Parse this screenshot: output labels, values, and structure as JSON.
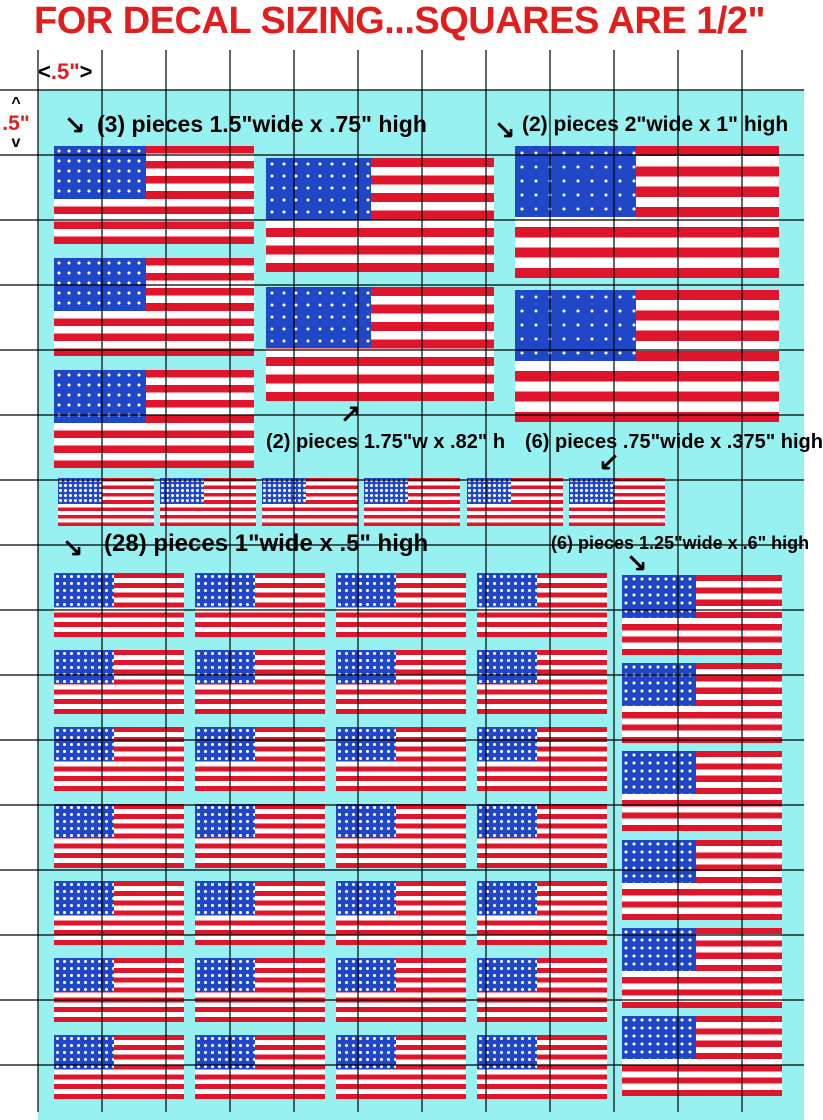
{
  "title": "FOR DECAL SIZING...SQUARES ARE 1/2\"",
  "scale": {
    "value": ".5\"",
    "left": "<",
    "right": ">",
    "up": "^",
    "down": "v"
  },
  "labels": {
    "three_large": "(3) pieces 1.5\"wide x .75\" high",
    "two_2in": "(2) pieces 2\"wide x 1\" high",
    "two_175": "(2) pieces 1.75\"w x .82\" h",
    "six_75": "(6) pieces .75\"wide x .375\" high",
    "twentyeight": "(28) pieces 1\"wide x .5\" high",
    "six_125": "(6) pieces 1.25\"wide x .6\" high"
  },
  "colors": {
    "red": "#e0142a",
    "blue": "#1f47c8",
    "background": "#97f1f1",
    "title": "#e11d1d"
  }
}
